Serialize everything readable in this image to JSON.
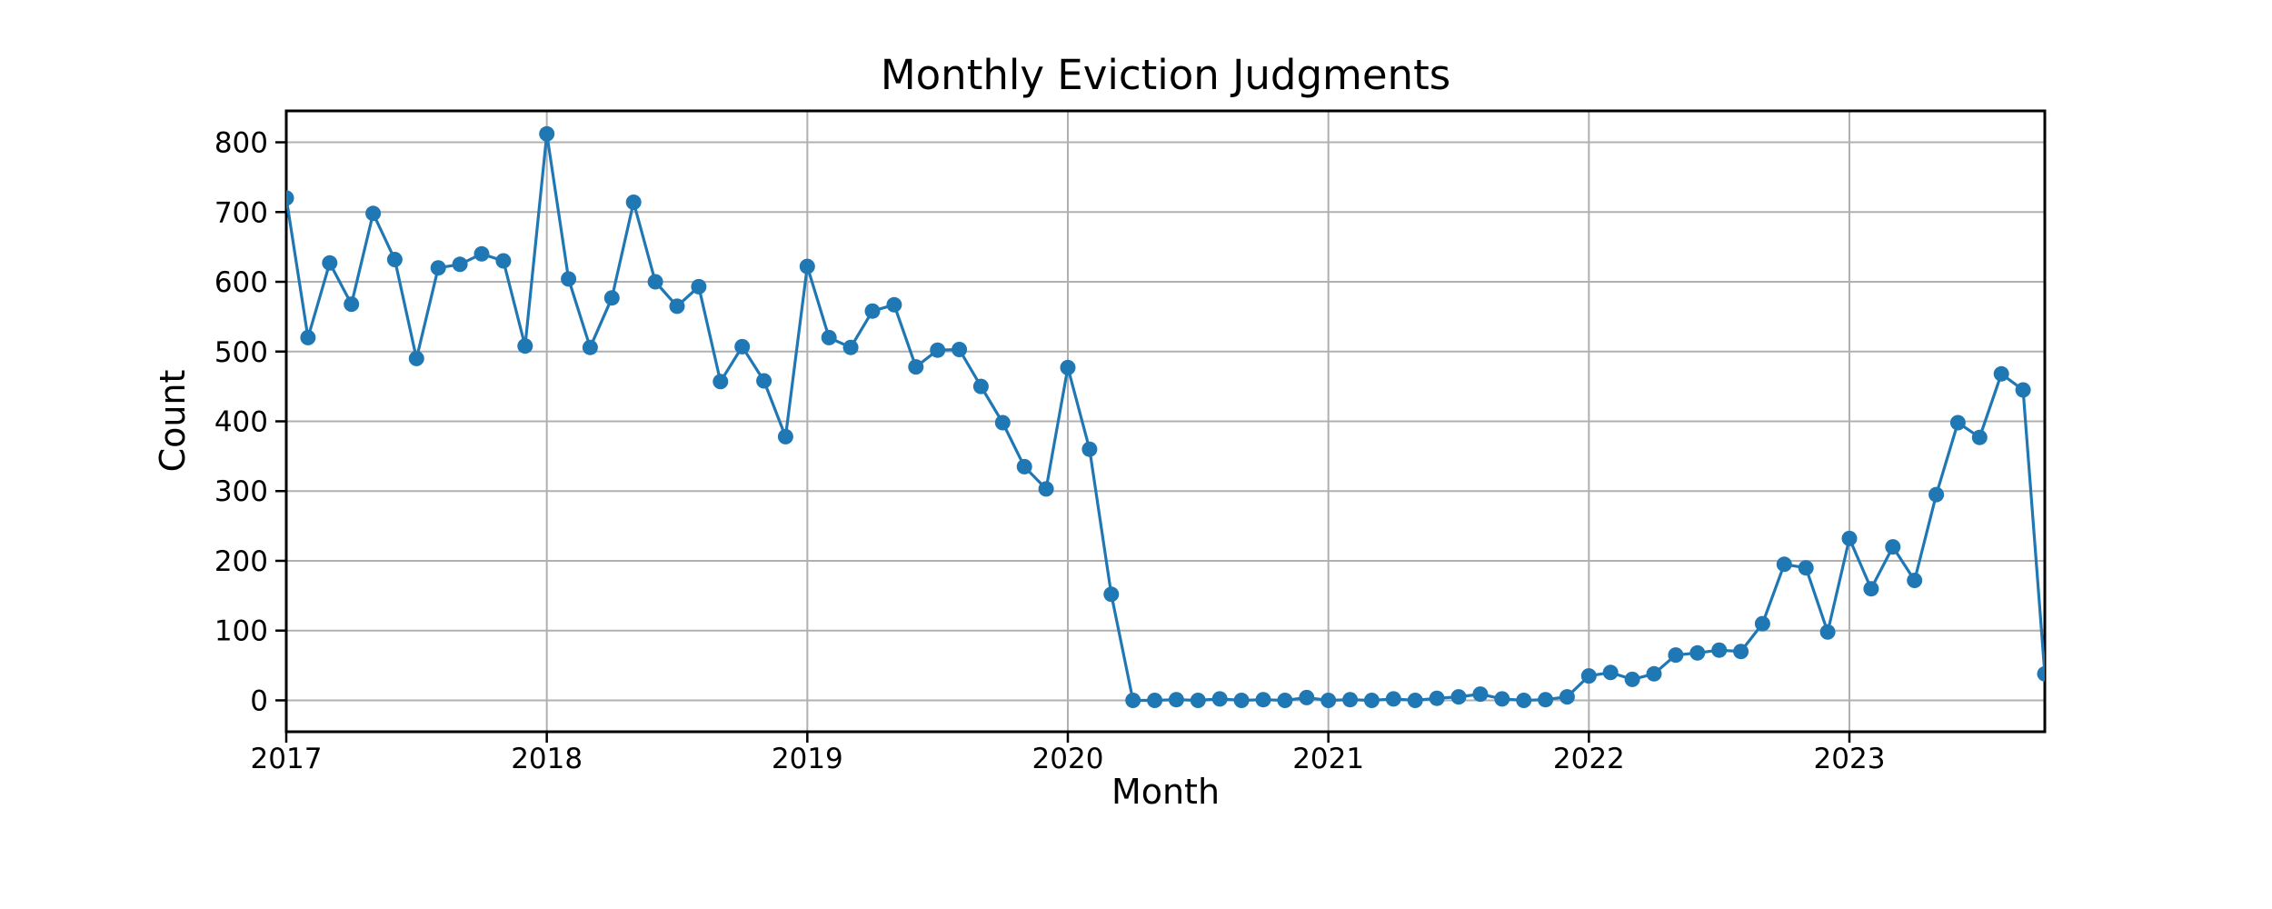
{
  "figure": {
    "background": "#ffffff",
    "text_color": "#000000"
  },
  "chart_data": {
    "type": "line",
    "title": "Monthly Eviction Judgments",
    "xlabel": "Month",
    "ylabel": "Count",
    "legend_position": "none",
    "grid": true,
    "grid_color": "#b0b0b0",
    "line_color": "#1f77b4",
    "marker": "o",
    "ylim": [
      -45,
      845
    ],
    "y_ticks": [
      0,
      100,
      200,
      300,
      400,
      500,
      600,
      700,
      800
    ],
    "x_tick_positions": [
      0,
      12,
      24,
      36,
      48,
      60,
      72
    ],
    "x_tick_labels": [
      "2017",
      "2018",
      "2019",
      "2020",
      "2021",
      "2022",
      "2023"
    ],
    "x": [
      "2017-01",
      "2017-02",
      "2017-03",
      "2017-04",
      "2017-05",
      "2017-06",
      "2017-07",
      "2017-08",
      "2017-09",
      "2017-10",
      "2017-11",
      "2017-12",
      "2018-01",
      "2018-02",
      "2018-03",
      "2018-04",
      "2018-05",
      "2018-06",
      "2018-07",
      "2018-08",
      "2018-09",
      "2018-10",
      "2018-11",
      "2018-12",
      "2019-01",
      "2019-02",
      "2019-03",
      "2019-04",
      "2019-05",
      "2019-06",
      "2019-07",
      "2019-08",
      "2019-09",
      "2019-10",
      "2019-11",
      "2019-12",
      "2020-01",
      "2020-02",
      "2020-03",
      "2020-04",
      "2020-05",
      "2020-06",
      "2020-07",
      "2020-08",
      "2020-09",
      "2020-10",
      "2020-11",
      "2020-12",
      "2021-01",
      "2021-02",
      "2021-03",
      "2021-04",
      "2021-05",
      "2021-06",
      "2021-07",
      "2021-08",
      "2021-09",
      "2021-10",
      "2021-11",
      "2021-12",
      "2022-01",
      "2022-02",
      "2022-03",
      "2022-04",
      "2022-05",
      "2022-06",
      "2022-07",
      "2022-08",
      "2022-09",
      "2022-10",
      "2022-11",
      "2022-12",
      "2023-01",
      "2023-02",
      "2023-03",
      "2023-04",
      "2023-05",
      "2023-06",
      "2023-07",
      "2023-08",
      "2023-09",
      "2023-10"
    ],
    "y": [
      720,
      520,
      627,
      568,
      698,
      632,
      490,
      620,
      625,
      640,
      630,
      508,
      812,
      604,
      506,
      577,
      714,
      600,
      565,
      593,
      457,
      507,
      458,
      378,
      622,
      520,
      506,
      558,
      567,
      478,
      502,
      503,
      450,
      398,
      335,
      303,
      477,
      360,
      152,
      0,
      0,
      1,
      0,
      2,
      0,
      1,
      0,
      4,
      0,
      1,
      0,
      2,
      0,
      3,
      5,
      9,
      2,
      0,
      1,
      5,
      35,
      40,
      30,
      38,
      65,
      68,
      72,
      70,
      110,
      195,
      190,
      98,
      232,
      160,
      220,
      172,
      295,
      398,
      377,
      468,
      445,
      38
    ]
  }
}
